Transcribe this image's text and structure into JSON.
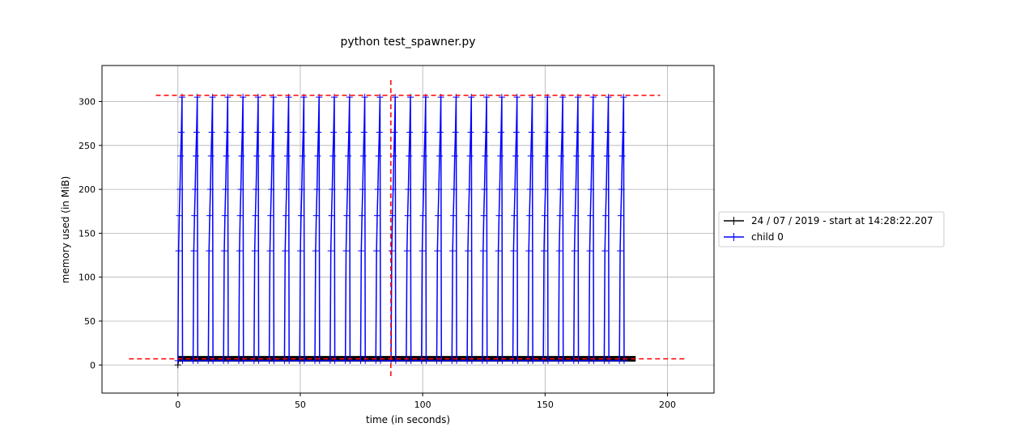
{
  "chart_data": {
    "type": "line",
    "title": "python test_spawner.py",
    "xlabel": "time (in seconds)",
    "ylabel": "memory used (in MiB)",
    "xlim": [
      -31,
      219
    ],
    "ylim": [
      -32,
      341
    ],
    "xticks": [
      0,
      50,
      100,
      150,
      200
    ],
    "yticks": [
      0,
      50,
      100,
      150,
      200,
      250,
      300
    ],
    "grid": true,
    "legend_position": "right, outside plot area",
    "series": [
      {
        "name": "24 / 07 / 2019 - start at 14:28:22.207",
        "color": "#000000",
        "marker": "+",
        "x_start": 0,
        "x_end": 187,
        "values": [
          0,
          7,
          7
        ]
      },
      {
        "name": "child 0",
        "color": "#0000ff",
        "marker": "+",
        "period_seconds": 6.22,
        "cycles": 30,
        "cycle_profile_values": [
          5,
          130,
          170,
          200,
          238,
          265,
          305,
          5
        ],
        "x_start": 0,
        "x_end": 187
      }
    ],
    "reference_lines": {
      "peak_value": 307,
      "peak_x_range": [
        -9,
        197
      ],
      "baseline_value": 7,
      "baseline_x_range": [
        -20,
        207
      ],
      "peak_time": 87,
      "color": "#ff0000",
      "style": "dashed"
    }
  }
}
